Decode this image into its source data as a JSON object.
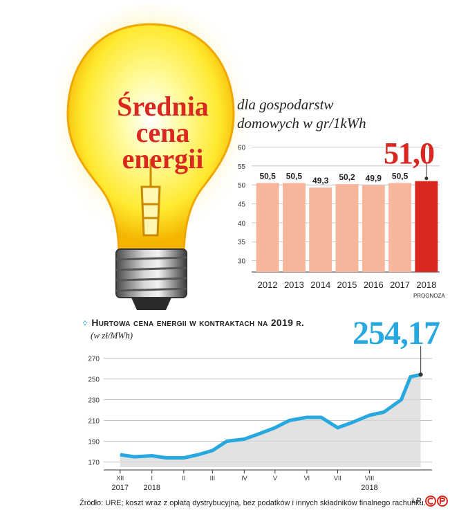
{
  "title": [
    "Średnia",
    "cena",
    "energii"
  ],
  "subtitle": [
    "dla gospodarstw",
    "domowych w gr/1kWh"
  ],
  "colors": {
    "accent_red": "#d9281f",
    "bar_salmon": "#f7b59c",
    "line_blue": "#27a8de",
    "bulb_yellow": "#fff56a"
  },
  "icons": [
    "light-bulb-icon",
    "dots-icon",
    "cp-logo-icon"
  ],
  "highlight_price": "51,0",
  "wholesale_heading": "Hurtowa cena energii w kontraktach na 2019 r.",
  "wholesale_unit": "(w zł/MWh)",
  "wholesale_price": "254,17",
  "footer": "Źródło: URE; koszt wraz z opłatą dystrybucyjną, bez podatków i innych składników finalnego rachunku.",
  "credit": "ŁR",
  "chart_data": [
    {
      "type": "bar",
      "categories": [
        "2012",
        "2013",
        "2014",
        "2015",
        "2016",
        "2017",
        "2018"
      ],
      "values": [
        50.5,
        50.5,
        49.3,
        50.2,
        49.9,
        50.5,
        51.0
      ],
      "labels": [
        "50,5",
        "50,5",
        "49,3",
        "50,2",
        "49,9",
        "50,5",
        ""
      ],
      "category_note": {
        "2018": "PROGNOZA"
      },
      "yticks": [
        30,
        35,
        40,
        45,
        50,
        55,
        60
      ],
      "ylim": [
        27,
        61
      ],
      "grid": true
    },
    {
      "type": "area",
      "x": [
        "2017-12-01",
        "2017-12-15",
        "2018-01-01",
        "2018-01-15",
        "2018-02-01",
        "2018-02-15",
        "2018-03-01",
        "2018-03-15",
        "2018-04-01",
        "2018-04-15",
        "2018-05-01",
        "2018-05-15",
        "2018-06-01",
        "2018-06-15",
        "2018-07-01",
        "2018-07-15",
        "2018-08-01",
        "2018-08-15",
        "2018-09-01",
        "2018-09-10",
        "2018-09-20"
      ],
      "y": [
        177,
        175,
        176,
        174,
        174,
        177,
        181,
        190,
        192,
        197,
        203,
        210,
        213,
        213,
        203,
        208,
        215,
        218,
        230,
        252,
        254.17
      ],
      "xticks": [
        "XII",
        "I",
        "II",
        "III",
        "IV",
        "V",
        "VI",
        "VII",
        "VIII"
      ],
      "year_labels": [
        "2017",
        "2018",
        "2018"
      ],
      "yticks": [
        170,
        190,
        210,
        230,
        250,
        270
      ],
      "ylim": [
        165,
        275
      ],
      "grid": true
    }
  ]
}
